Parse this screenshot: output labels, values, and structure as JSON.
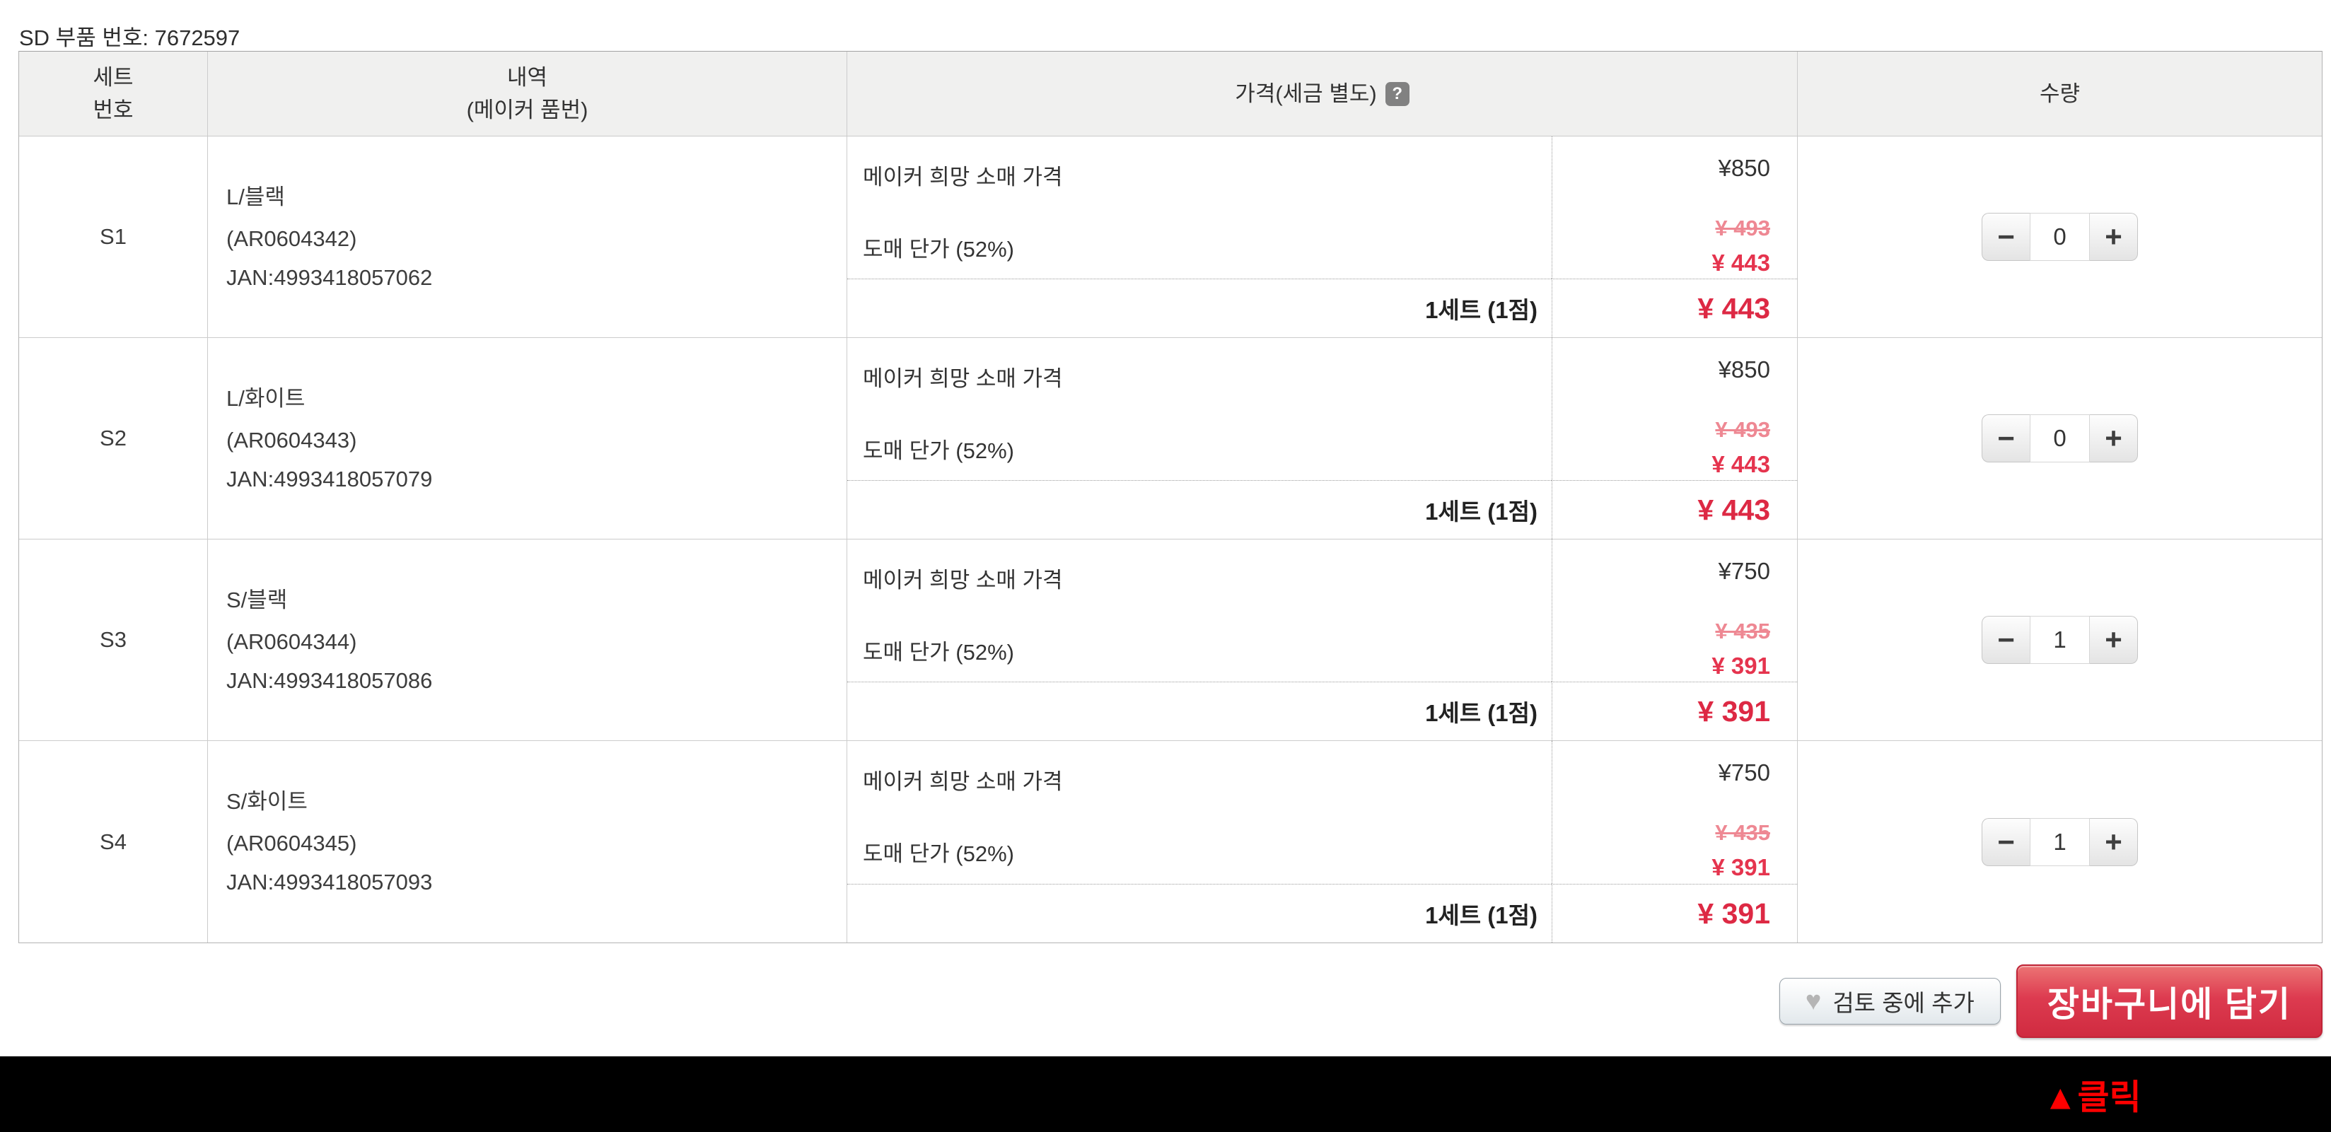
{
  "page": {
    "title": "SD 부품 번호: 7672597"
  },
  "table": {
    "header": {
      "set_no_line1": "세트",
      "set_no_line2": "번호",
      "desc_line1": "내역",
      "desc_line2": "(메이커 품번)",
      "price": "가격(세금 별도)",
      "help_icon": "?",
      "qty": "수량"
    },
    "rows": [
      {
        "set_no": "S1",
        "variant": "L/블랙",
        "maker_code": "(AR0604342)",
        "jan": "JAN:4993418057062",
        "retail_label": "메이커 희망 소매 가격",
        "retail_price": "¥850",
        "wholesale_label": "도매 단가 (52%)",
        "old_price": "¥ 493",
        "sale_price": "¥ 443",
        "subtotal_label": "1세트 (1점)",
        "subtotal_price": "¥ 443",
        "qty": "0"
      },
      {
        "set_no": "S2",
        "variant": "L/화이트",
        "maker_code": "(AR0604343)",
        "jan": "JAN:4993418057079",
        "retail_label": "메이커 희망 소매 가격",
        "retail_price": "¥850",
        "wholesale_label": "도매 단가 (52%)",
        "old_price": "¥ 493",
        "sale_price": "¥ 443",
        "subtotal_label": "1세트 (1점)",
        "subtotal_price": "¥ 443",
        "qty": "0"
      },
      {
        "set_no": "S3",
        "variant": "S/블랙",
        "maker_code": "(AR0604344)",
        "jan": "JAN:4993418057086",
        "retail_label": "메이커 희망 소매 가격",
        "retail_price": "¥750",
        "wholesale_label": "도매 단가 (52%)",
        "old_price": "¥ 435",
        "sale_price": "¥ 391",
        "subtotal_label": "1세트 (1점)",
        "subtotal_price": "¥ 391",
        "qty": "1"
      },
      {
        "set_no": "S4",
        "variant": "S/화이트",
        "maker_code": "(AR0604345)",
        "jan": "JAN:4993418057093",
        "retail_label": "메이커 희망 소매 가격",
        "retail_price": "¥750",
        "wholesale_label": "도매 단가 (52%)",
        "old_price": "¥ 435",
        "sale_price": "¥ 391",
        "subtotal_label": "1세트 (1점)",
        "subtotal_price": "¥ 391",
        "qty": "1"
      }
    ]
  },
  "stepper": {
    "minus_label": "−",
    "plus_label": "+"
  },
  "actions": {
    "heart_icon": "♥",
    "review_label": "검토 중에 추가",
    "cart_label": "장바구니에 담기"
  },
  "footer": {
    "click_label": "▲클릭"
  },
  "colors": {
    "sale_red": "#e5344e",
    "subtotal_red": "#dd2944",
    "old_price_pink": "#ee8893",
    "cart_button_red": "#d02b40",
    "click_red": "#ff0000",
    "header_bg": "#f0f0ef"
  }
}
